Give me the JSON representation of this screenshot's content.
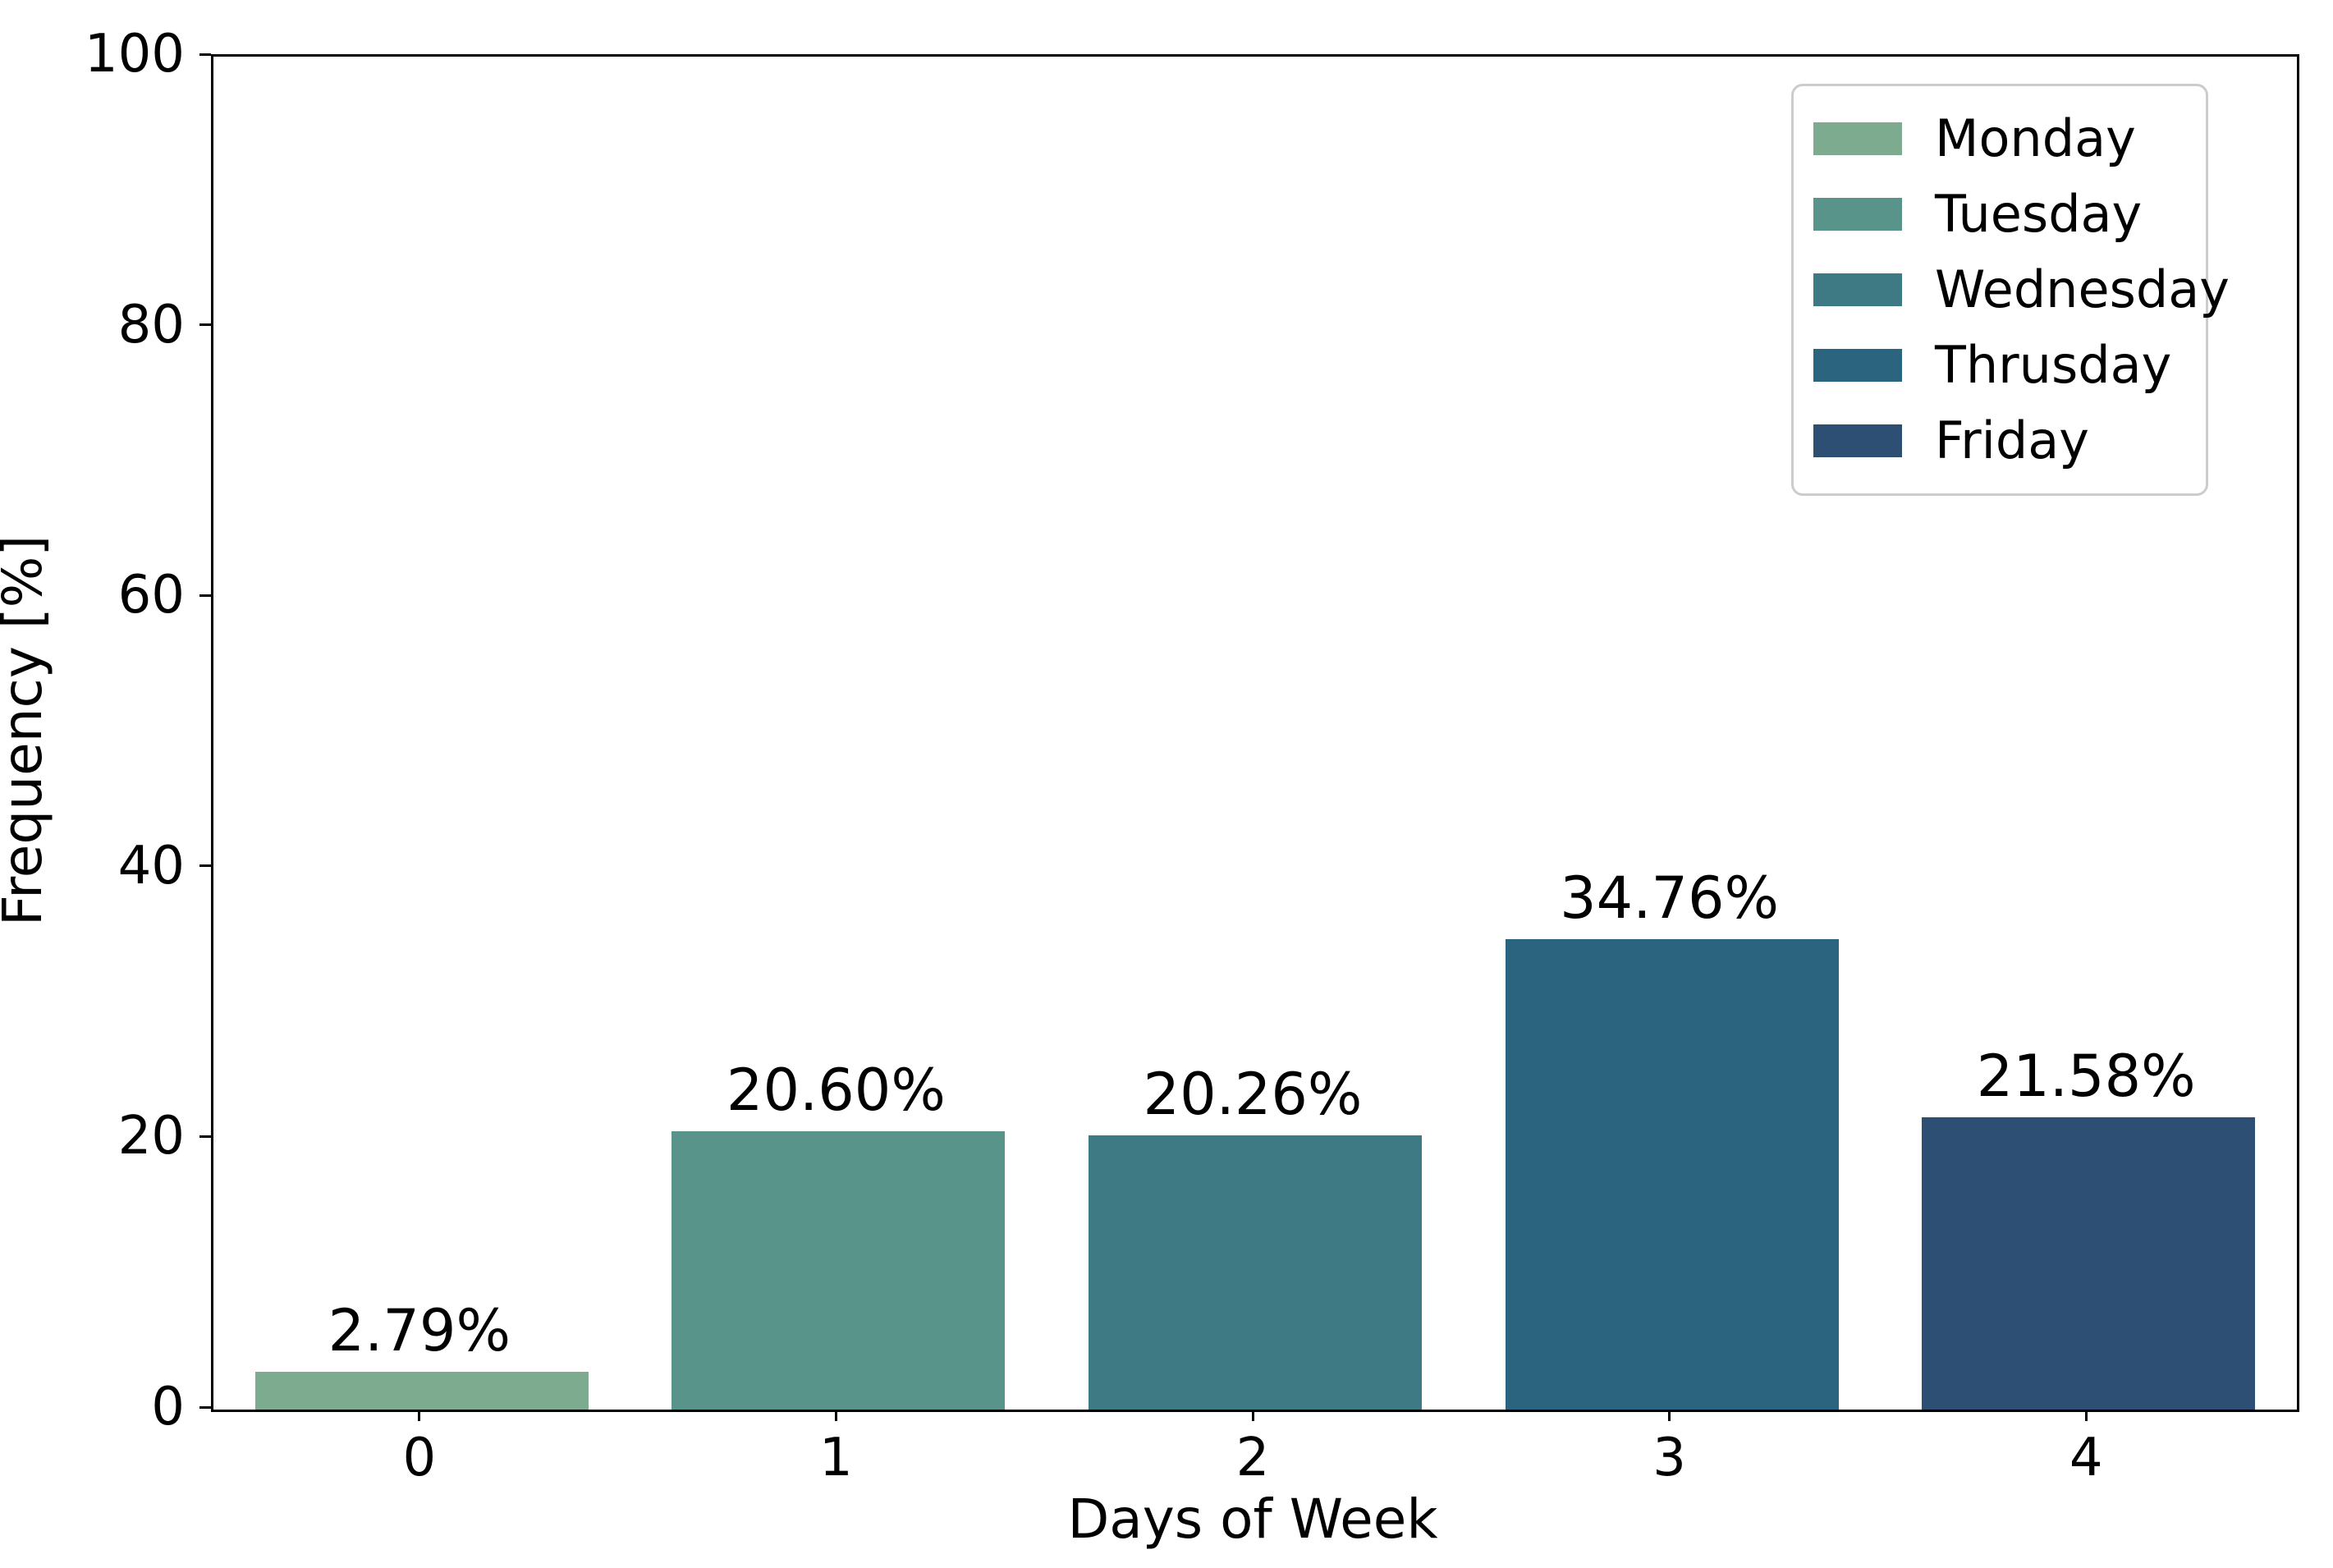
{
  "chart_data": {
    "type": "bar",
    "title": "",
    "xlabel": "Days of Week",
    "ylabel": "Frequency [%]",
    "categories": [
      "0",
      "1",
      "2",
      "3",
      "4"
    ],
    "values": [
      2.79,
      20.6,
      20.26,
      34.76,
      21.58
    ],
    "bar_labels": [
      "2.79%",
      "20.60%",
      "20.26%",
      "34.76%",
      "21.58%"
    ],
    "ylim": [
      0,
      100
    ],
    "yticks": [
      "0",
      "20",
      "40",
      "60",
      "80",
      "100"
    ],
    "grid": false,
    "legend_position": "upper right",
    "series": [
      {
        "name": "Monday",
        "color": "#7cab8f"
      },
      {
        "name": "Tuesday",
        "color": "#59948a"
      },
      {
        "name": "Wednesday",
        "color": "#3d7a83"
      },
      {
        "name": "Thrusday",
        "color": "#2a647e"
      },
      {
        "name": "Friday",
        "color": "#2e4f74"
      }
    ]
  }
}
